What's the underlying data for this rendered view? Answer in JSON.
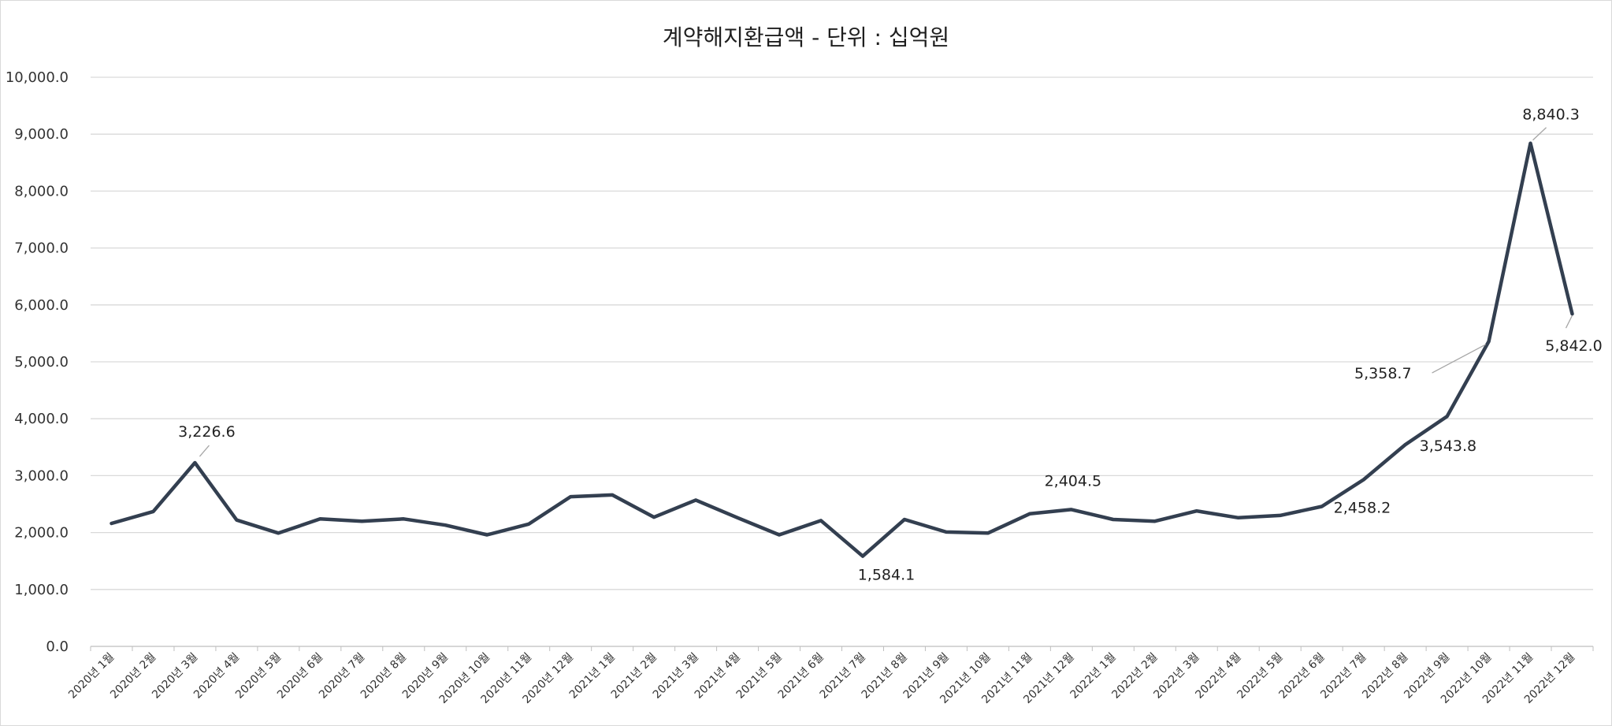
{
  "chart_data": {
    "type": "line",
    "title": "계약해지환급액 - 단위 : 십억원",
    "xlabel": "",
    "ylabel": "",
    "ylim": [
      0,
      10000
    ],
    "yticks": [
      0,
      1000,
      2000,
      3000,
      4000,
      5000,
      6000,
      7000,
      8000,
      9000,
      10000
    ],
    "ytick_labels": [
      "0.0",
      "1,000.0",
      "2,000.0",
      "3,000.0",
      "4,000.0",
      "5,000.0",
      "6,000.0",
      "7,000.0",
      "8,000.0",
      "9,000.0",
      "10,000.0"
    ],
    "grid": true,
    "line_color": "#333f50",
    "categories": [
      "2020년 1월",
      "2020년 2월",
      "2020년 3월",
      "2020년 4월",
      "2020년 5월",
      "2020년 6월",
      "2020년 7월",
      "2020년 8월",
      "2020년 9월",
      "2020년 10월",
      "2020년 11월",
      "2020년 12월",
      "2021년 1월",
      "2021년 2월",
      "2021년 3월",
      "2021년 4월",
      "2021년 5월",
      "2021년 6월",
      "2021년 7월",
      "2021년 8월",
      "2021년 9월",
      "2021년 10월",
      "2021년 11월",
      "2021년 12월",
      "2022년 1월",
      "2022년 2월",
      "2022년 3월",
      "2022년 4월",
      "2022년 5월",
      "2022년 6월",
      "2022년 7월",
      "2022년 8월",
      "2022년 9월",
      "2022년 10월",
      "2022년 11월",
      "2022년 12월"
    ],
    "values": [
      2160,
      2370,
      3226.6,
      2220,
      1990,
      2240,
      2200,
      2240,
      2130,
      1960,
      2150,
      2630,
      2660,
      2270,
      2570,
      2260,
      1960,
      2210,
      1584.1,
      2230,
      2010,
      1990,
      2330,
      2404.5,
      2230,
      2200,
      2380,
      2260,
      2300,
      2458.2,
      2930,
      3543.8,
      4040,
      5358.7,
      8840.3,
      5842.0
    ],
    "annotations": [
      {
        "index": 2,
        "text": "3,226.6"
      },
      {
        "index": 18,
        "text": "1,584.1"
      },
      {
        "index": 23,
        "text": "2,404.5"
      },
      {
        "index": 29,
        "text": "2,458.2"
      },
      {
        "index": 31,
        "text": "3,543.8"
      },
      {
        "index": 33,
        "text": "5,358.7"
      },
      {
        "index": 34,
        "text": "8,840.3"
      },
      {
        "index": 35,
        "text": "5,842.0"
      }
    ]
  }
}
